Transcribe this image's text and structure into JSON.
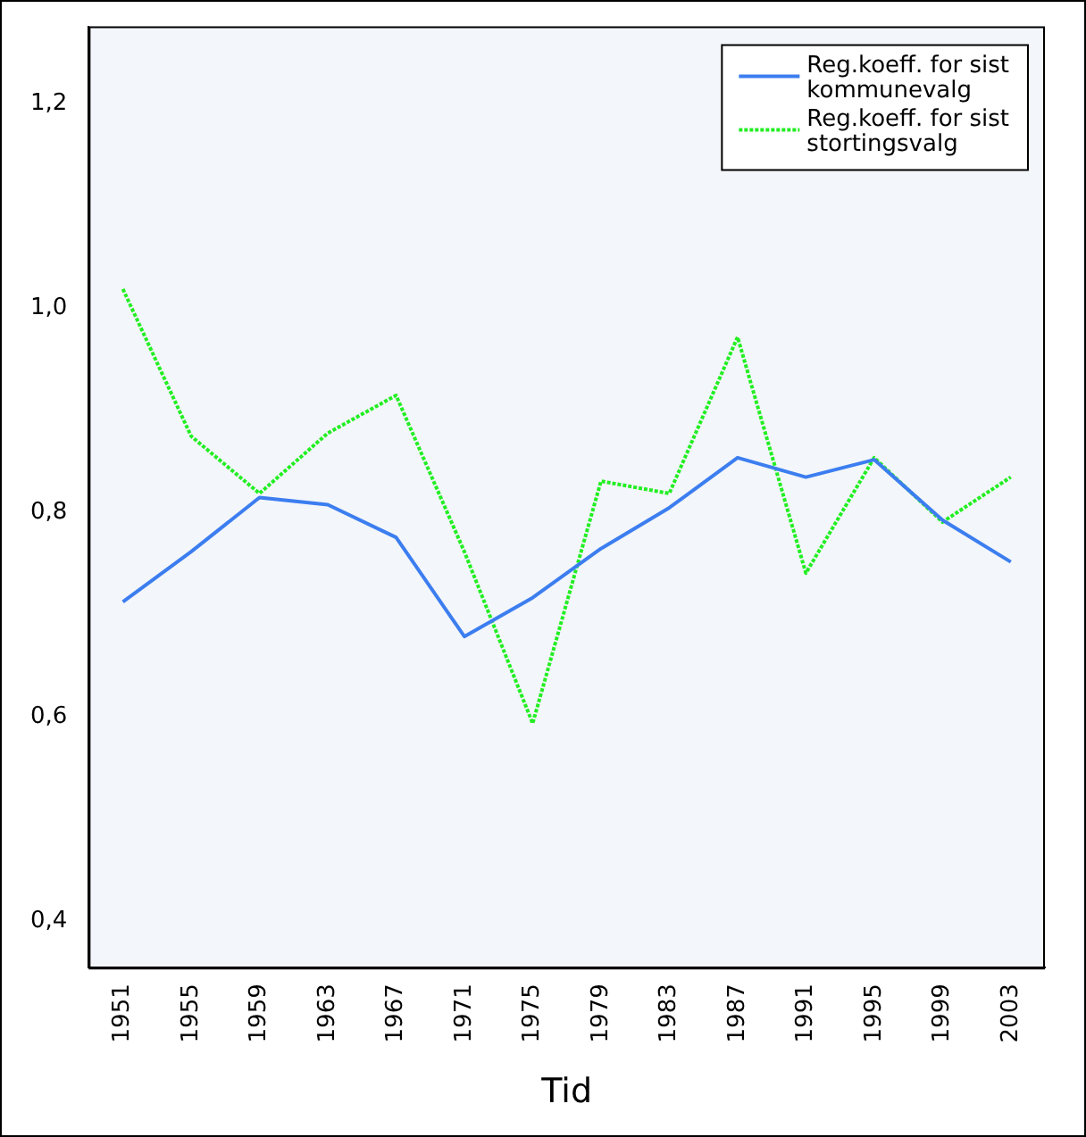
{
  "chart_data": {
    "type": "line",
    "xlabel": "Tid",
    "categories": [
      "1951",
      "1955",
      "1959",
      "1963",
      "1967",
      "1971",
      "1975",
      "1979",
      "1983",
      "1987",
      "1991",
      "1995",
      "1999",
      "2003"
    ],
    "series": [
      {
        "name": "Reg.koeff. for sist kommunevalg",
        "color": "#3c7ef0",
        "values": [
          0.713,
          0.762,
          0.815,
          0.808,
          0.776,
          0.679,
          0.717,
          0.765,
          0.805,
          0.854,
          0.835,
          0.852,
          0.793,
          0.752
        ]
      },
      {
        "name": "Reg.koeff. for sist stortingsvalg",
        "color": "#22ee22",
        "line_style": "dotted",
        "values": [
          1.019,
          0.875,
          0.819,
          0.878,
          0.915,
          0.762,
          0.594,
          0.831,
          0.819,
          0.972,
          0.741,
          0.854,
          0.791,
          0.835
        ]
      }
    ],
    "ylim": [
      0.355,
      1.276
    ],
    "yticks": [
      {
        "value": 0.4,
        "label": "0,4"
      },
      {
        "value": 0.6,
        "label": "0,6"
      },
      {
        "value": 0.8,
        "label": "0,8"
      },
      {
        "value": 1.0,
        "label": "1,0"
      },
      {
        "value": 1.2,
        "label": "1,2"
      }
    ],
    "grid": false,
    "legend": "top right",
    "marker": "none",
    "line_style": "solid"
  }
}
